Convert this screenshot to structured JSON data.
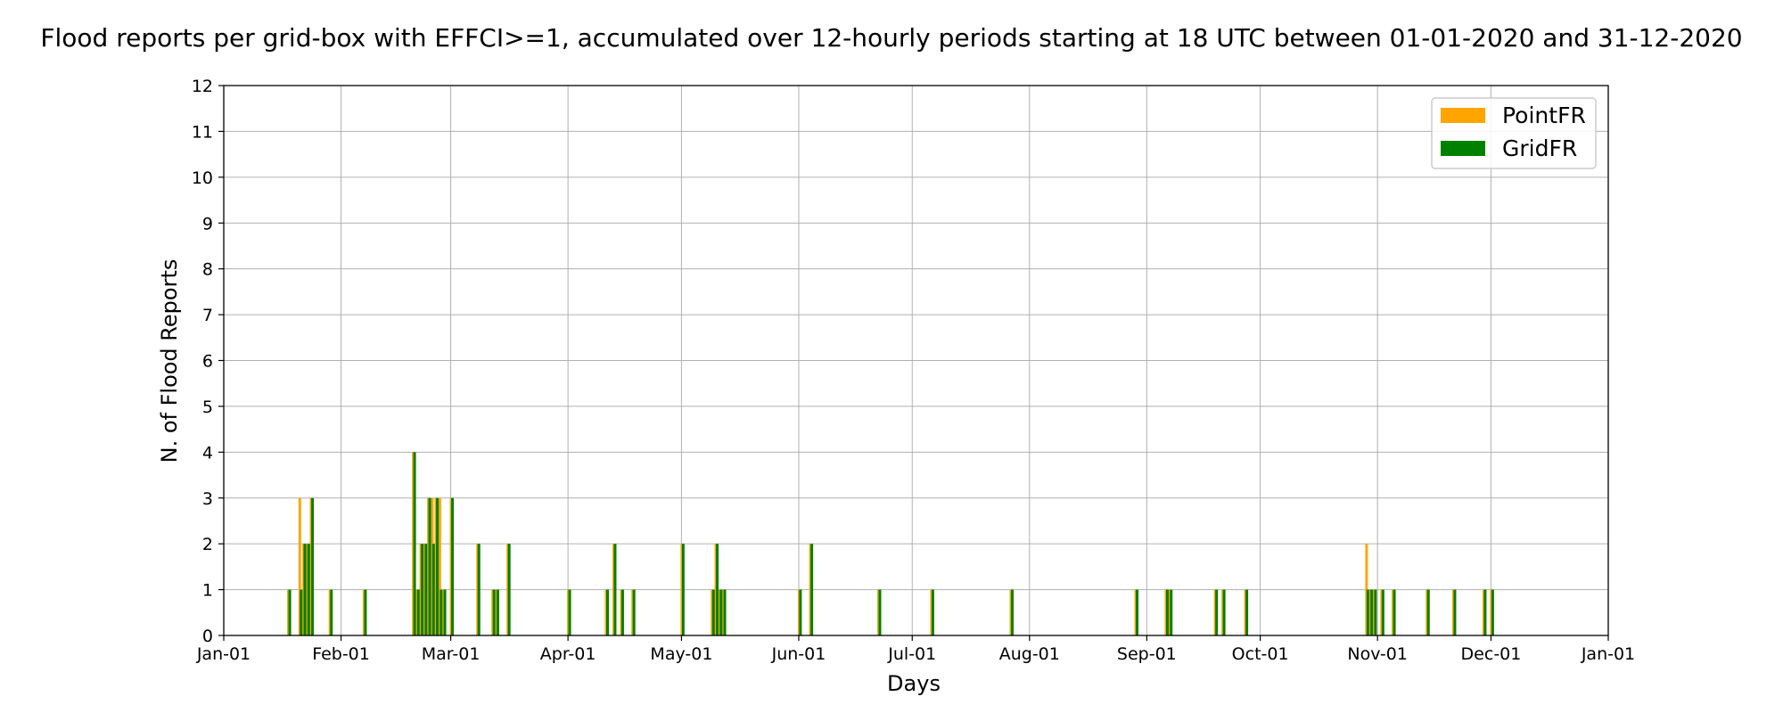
{
  "chart_data": {
    "type": "bar",
    "title": "Flood reports per grid-box with EFFCI>=1, accumulated over 12-hourly periods starting at 18 UTC between 01-01-2020 and 31-12-2020",
    "xlabel": "Days",
    "ylabel": "N. of Flood Reports",
    "xlim": [
      "2020-01-01",
      "2021-01-01"
    ],
    "ylim": [
      0,
      12
    ],
    "x_tick_labels": [
      {
        "date": "2020-01-01",
        "label": "Jan-01"
      },
      {
        "date": "2020-02-01",
        "label": "Feb-01"
      },
      {
        "date": "2020-03-01",
        "label": "Mar-01"
      },
      {
        "date": "2020-04-01",
        "label": "Apr-01"
      },
      {
        "date": "2020-05-01",
        "label": "May-01"
      },
      {
        "date": "2020-06-01",
        "label": "Jun-01"
      },
      {
        "date": "2020-07-01",
        "label": "Jul-01"
      },
      {
        "date": "2020-08-01",
        "label": "Aug-01"
      },
      {
        "date": "2020-09-01",
        "label": "Sep-01"
      },
      {
        "date": "2020-10-01",
        "label": "Oct-01"
      },
      {
        "date": "2020-11-01",
        "label": "Nov-01"
      },
      {
        "date": "2020-12-01",
        "label": "Dec-01"
      },
      {
        "date": "2021-01-01",
        "label": "Jan-01"
      }
    ],
    "y_ticks": [
      0,
      1,
      2,
      3,
      4,
      5,
      6,
      7,
      8,
      9,
      10,
      11,
      12
    ],
    "grid": true,
    "legend_position": "top-right",
    "colors": {
      "PointFR": "#FFA500",
      "GridFR": "#008000"
    },
    "series": [
      {
        "name": "PointFR",
        "x": [
          "2020-01-18",
          "2020-01-21",
          "2020-01-22",
          "2020-01-23",
          "2020-01-24",
          "2020-01-29",
          "2020-02-07",
          "2020-02-20",
          "2020-02-21",
          "2020-02-22",
          "2020-02-23",
          "2020-02-24",
          "2020-02-25",
          "2020-02-26",
          "2020-02-27",
          "2020-02-28",
          "2020-03-01",
          "2020-03-08",
          "2020-03-12",
          "2020-03-13",
          "2020-03-16",
          "2020-04-01",
          "2020-04-11",
          "2020-04-13",
          "2020-04-15",
          "2020-04-18",
          "2020-05-01",
          "2020-05-09",
          "2020-05-10",
          "2020-05-11",
          "2020-05-12",
          "2020-06-01",
          "2020-06-04",
          "2020-06-22",
          "2020-07-06",
          "2020-07-27",
          "2020-08-29",
          "2020-09-06",
          "2020-09-07",
          "2020-09-19",
          "2020-09-21",
          "2020-09-27",
          "2020-10-29",
          "2020-10-30",
          "2020-10-31",
          "2020-11-02",
          "2020-11-05",
          "2020-11-14",
          "2020-11-21",
          "2020-11-29",
          "2020-12-01"
        ],
        "values": [
          1,
          3,
          2,
          2,
          3,
          1,
          1,
          4,
          1,
          2,
          2,
          3,
          3,
          3,
          3,
          1,
          3,
          2,
          1,
          1,
          2,
          1,
          1,
          2,
          1,
          1,
          2,
          1,
          2,
          1,
          1,
          1,
          2,
          1,
          1,
          1,
          1,
          1,
          1,
          1,
          1,
          1,
          2,
          1,
          1,
          1,
          1,
          1,
          1,
          1,
          1
        ]
      },
      {
        "name": "GridFR",
        "x": [
          "2020-01-18",
          "2020-01-21",
          "2020-01-22",
          "2020-01-23",
          "2020-01-24",
          "2020-01-29",
          "2020-02-07",
          "2020-02-20",
          "2020-02-21",
          "2020-02-22",
          "2020-02-23",
          "2020-02-24",
          "2020-02-25",
          "2020-02-26",
          "2020-02-27",
          "2020-02-28",
          "2020-03-01",
          "2020-03-08",
          "2020-03-12",
          "2020-03-13",
          "2020-03-16",
          "2020-04-01",
          "2020-04-11",
          "2020-04-13",
          "2020-04-15",
          "2020-04-18",
          "2020-05-01",
          "2020-05-09",
          "2020-05-10",
          "2020-05-11",
          "2020-05-12",
          "2020-06-01",
          "2020-06-04",
          "2020-06-22",
          "2020-07-06",
          "2020-07-27",
          "2020-08-29",
          "2020-09-06",
          "2020-09-07",
          "2020-09-19",
          "2020-09-21",
          "2020-09-27",
          "2020-10-29",
          "2020-10-30",
          "2020-10-31",
          "2020-11-02",
          "2020-11-05",
          "2020-11-14",
          "2020-11-21",
          "2020-11-29",
          "2020-12-01"
        ],
        "values": [
          1,
          1,
          2,
          2,
          3,
          1,
          1,
          4,
          1,
          2,
          2,
          3,
          2,
          3,
          1,
          1,
          3,
          2,
          1,
          1,
          2,
          1,
          1,
          2,
          1,
          1,
          2,
          1,
          2,
          1,
          1,
          1,
          2,
          1,
          1,
          1,
          1,
          1,
          1,
          1,
          1,
          1,
          1,
          1,
          1,
          1,
          1,
          1,
          1,
          1,
          1
        ]
      }
    ]
  }
}
